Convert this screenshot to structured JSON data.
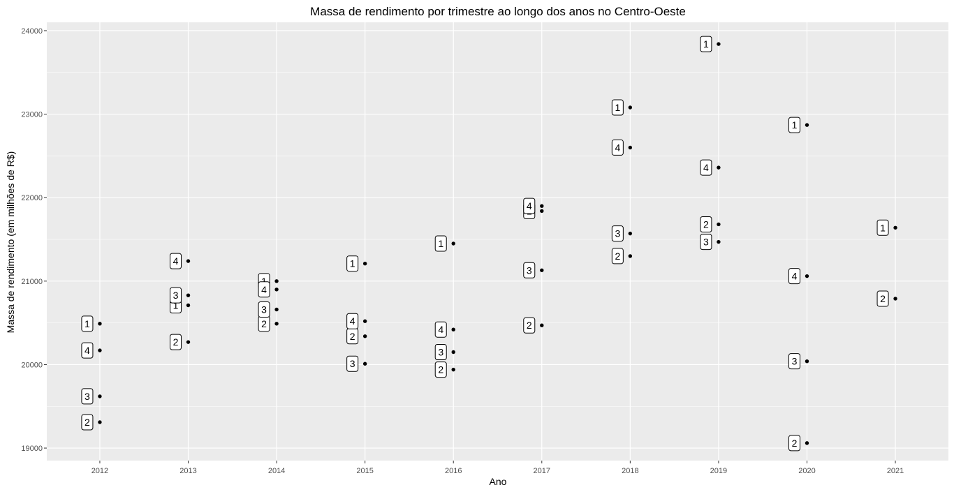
{
  "chart_data": {
    "type": "scatter",
    "title": "Massa de rendimento por trimestre ao longo dos anos no Centro-Oeste",
    "xlabel": "Ano",
    "ylabel": "Massa de rendimento (em milhões de R$)",
    "x_ticks": [
      "2012",
      "2013",
      "2014",
      "2015",
      "2016",
      "2017",
      "2018",
      "2019",
      "2020",
      "2021"
    ],
    "y_ticks": [
      19000,
      20000,
      21000,
      22000,
      23000,
      24000
    ],
    "xlim": [
      2011.4,
      2021.6
    ],
    "ylim": [
      18850,
      24100
    ],
    "grid": true,
    "point_labels": "trimestre",
    "points": [
      {
        "x": 2012,
        "y": 20490,
        "label": "1"
      },
      {
        "x": 2012,
        "y": 19310,
        "label": "2"
      },
      {
        "x": 2012,
        "y": 19620,
        "label": "3"
      },
      {
        "x": 2012,
        "y": 20170,
        "label": "4"
      },
      {
        "x": 2013,
        "y": 20710,
        "label": "1"
      },
      {
        "x": 2013,
        "y": 20270,
        "label": "2"
      },
      {
        "x": 2013,
        "y": 20830,
        "label": "3"
      },
      {
        "x": 2013,
        "y": 21240,
        "label": "4"
      },
      {
        "x": 2014,
        "y": 21000,
        "label": "1"
      },
      {
        "x": 2014,
        "y": 20490,
        "label": "2"
      },
      {
        "x": 2014,
        "y": 20660,
        "label": "3"
      },
      {
        "x": 2014,
        "y": 20900,
        "label": "4"
      },
      {
        "x": 2015,
        "y": 21210,
        "label": "1"
      },
      {
        "x": 2015,
        "y": 20340,
        "label": "2"
      },
      {
        "x": 2015,
        "y": 20010,
        "label": "3"
      },
      {
        "x": 2015,
        "y": 20520,
        "label": "4"
      },
      {
        "x": 2016,
        "y": 21450,
        "label": "1"
      },
      {
        "x": 2016,
        "y": 19940,
        "label": "2"
      },
      {
        "x": 2016,
        "y": 20150,
        "label": "3"
      },
      {
        "x": 2016,
        "y": 20420,
        "label": "4"
      },
      {
        "x": 2017,
        "y": 21840,
        "label": "1"
      },
      {
        "x": 2017,
        "y": 20470,
        "label": "2"
      },
      {
        "x": 2017,
        "y": 21130,
        "label": "3"
      },
      {
        "x": 2017,
        "y": 21900,
        "label": "4"
      },
      {
        "x": 2018,
        "y": 23080,
        "label": "1"
      },
      {
        "x": 2018,
        "y": 21300,
        "label": "2"
      },
      {
        "x": 2018,
        "y": 21570,
        "label": "3"
      },
      {
        "x": 2018,
        "y": 22600,
        "label": "4"
      },
      {
        "x": 2019,
        "y": 23840,
        "label": "1"
      },
      {
        "x": 2019,
        "y": 21680,
        "label": "2"
      },
      {
        "x": 2019,
        "y": 21470,
        "label": "3"
      },
      {
        "x": 2019,
        "y": 22360,
        "label": "4"
      },
      {
        "x": 2020,
        "y": 22870,
        "label": "1"
      },
      {
        "x": 2020,
        "y": 19060,
        "label": "2"
      },
      {
        "x": 2020,
        "y": 20040,
        "label": "3"
      },
      {
        "x": 2020,
        "y": 21060,
        "label": "4"
      },
      {
        "x": 2021,
        "y": 21640,
        "label": "1"
      },
      {
        "x": 2021,
        "y": 20790,
        "label": "2"
      }
    ],
    "colors": {
      "panel_background": "#ebebeb",
      "grid_line": "#ffffff",
      "point": "#000000",
      "label_fill": "#ffffff",
      "label_border": "#000000"
    }
  }
}
